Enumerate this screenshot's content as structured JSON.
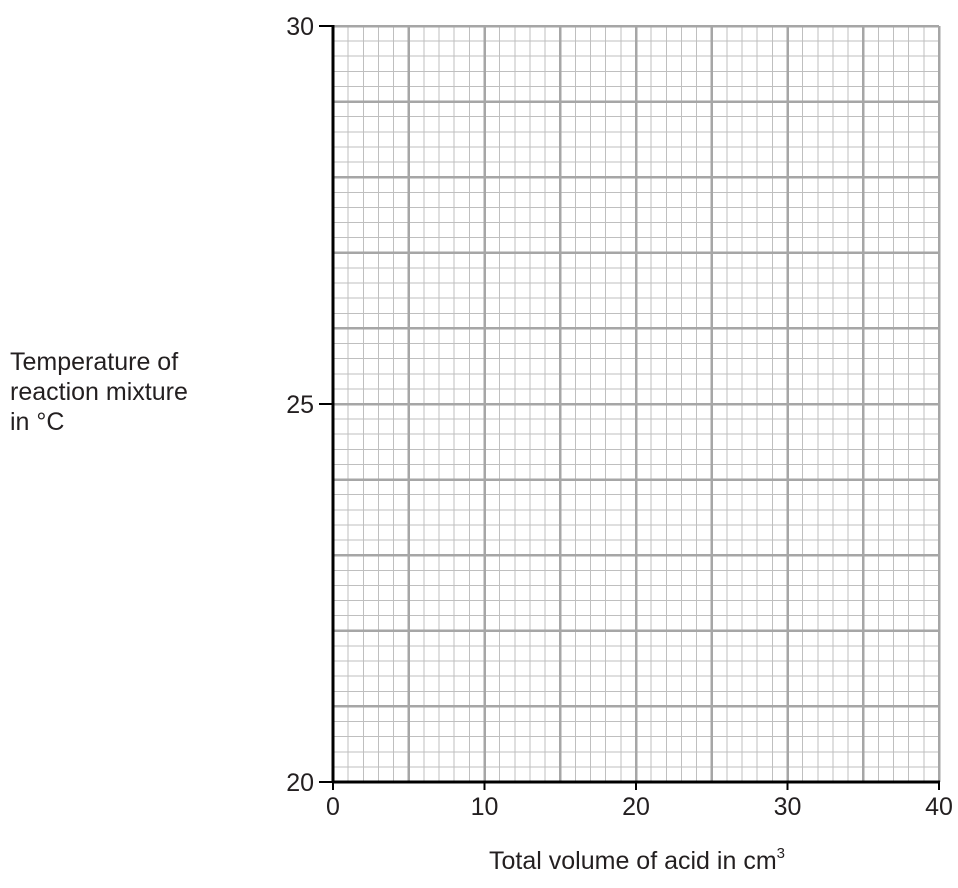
{
  "chart_data": {
    "type": "scatter",
    "title": "",
    "xlabel": "Total volume of acid in cm",
    "xlabel_superscript": "3",
    "ylabel_lines": [
      "Temperature of",
      "reaction mixture",
      "in °C"
    ],
    "xlim": [
      0,
      40
    ],
    "ylim": [
      20,
      30
    ],
    "x_ticks": [
      "0",
      "10",
      "20",
      "30",
      "40"
    ],
    "y_ticks": [
      "20",
      "25",
      "30"
    ],
    "grid": true,
    "series": []
  },
  "colors": {
    "axis": "#000000",
    "major_grid": "#a6a6a6",
    "minor_grid": "#bfbfbf",
    "text": "#231f20"
  }
}
